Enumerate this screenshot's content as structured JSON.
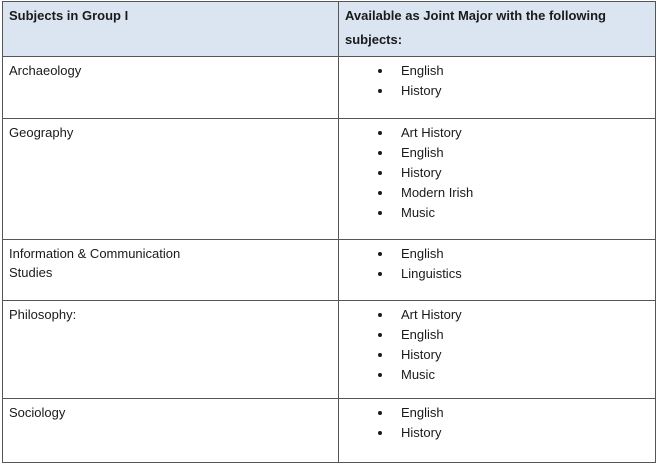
{
  "header": {
    "col1": "Subjects in Group I",
    "col2": "Available as Joint Major with the following subjects:"
  },
  "rows": [
    {
      "subject": "Archaeology",
      "joint": [
        "English",
        "History"
      ]
    },
    {
      "subject": "Geography",
      "joint": [
        "Art History",
        "English",
        "History",
        "Modern Irish",
        "Music"
      ]
    },
    {
      "subject": "Information & Communication Studies",
      "joint": [
        "English",
        "Linguistics"
      ]
    },
    {
      "subject": "Philosophy:",
      "joint": [
        "Art History",
        "English",
        "History",
        "Music"
      ]
    },
    {
      "subject": "Sociology",
      "joint": [
        "English",
        "History"
      ]
    }
  ],
  "colors": {
    "header_bg": "#dbe5f1",
    "border": "#555555"
  }
}
